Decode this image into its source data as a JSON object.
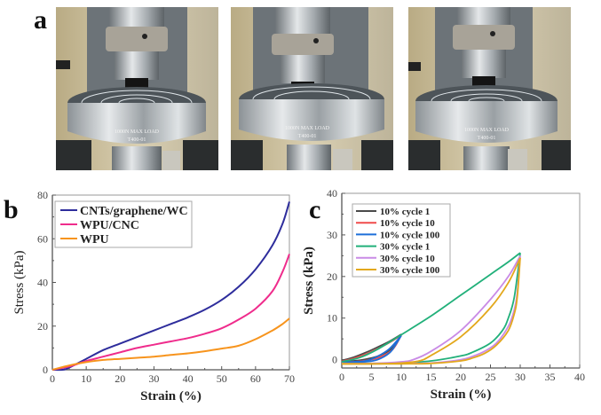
{
  "panels": {
    "a": {
      "letter": "a",
      "photos": [
        {
          "caption_engraving": "1000N MAX LOAD",
          "caption_code": "T400-01",
          "state": "uncompressed"
        },
        {
          "caption_engraving": "1000N MAX LOAD",
          "caption_code": "T400-01",
          "state": "compressed"
        },
        {
          "caption_engraving": "1000N MAX LOAD",
          "caption_code": "T400-01",
          "state": "released"
        }
      ]
    },
    "b": {
      "letter": "b"
    },
    "c": {
      "letter": "c"
    }
  },
  "chart_data": [
    {
      "id": "b",
      "type": "line",
      "title": "",
      "xlabel": "Strain (%)",
      "ylabel": "Stress (kPa)",
      "xlim": [
        0,
        70
      ],
      "ylim": [
        0,
        80
      ],
      "xticks": [
        0,
        10,
        20,
        30,
        40,
        50,
        60,
        70
      ],
      "yticks": [
        0,
        20,
        40,
        60,
        80
      ],
      "grid": false,
      "legend_position": "top-left",
      "series": [
        {
          "name": "CNTs/graphene/WC",
          "color": "#2e2d9c",
          "x": [
            0,
            3,
            5,
            10,
            15,
            20,
            25,
            30,
            35,
            40,
            45,
            50,
            55,
            60,
            65,
            68,
            70
          ],
          "y": [
            0,
            0,
            1,
            5,
            9,
            12,
            15,
            18,
            21,
            24,
            27.5,
            32,
            38,
            46,
            57,
            67,
            77
          ]
        },
        {
          "name": "WPU/CNC",
          "color": "#ef2c8c",
          "x": [
            0,
            5,
            10,
            15,
            20,
            25,
            30,
            35,
            40,
            45,
            50,
            55,
            60,
            65,
            68,
            70
          ],
          "y": [
            0,
            1.5,
            4,
            6,
            8,
            10,
            11.5,
            13,
            14.5,
            16.5,
            19,
            23,
            28,
            36,
            45,
            53
          ]
        },
        {
          "name": "WPU",
          "color": "#f7941d",
          "x": [
            0,
            5,
            10,
            15,
            20,
            25,
            30,
            35,
            40,
            45,
            50,
            55,
            60,
            65,
            68,
            70
          ],
          "y": [
            0,
            2,
            3.5,
            4.5,
            5,
            5.5,
            6,
            6.8,
            7.5,
            8.5,
            9.7,
            11,
            14,
            18,
            21,
            23.5
          ]
        }
      ]
    },
    {
      "id": "c",
      "type": "line",
      "title": "",
      "xlabel": "Strain (%)",
      "ylabel": "Stress (kPa)",
      "xlim": [
        0,
        40
      ],
      "ylim": [
        -2,
        40
      ],
      "xticks": [
        0,
        5,
        10,
        15,
        20,
        25,
        30,
        35,
        40
      ],
      "yticks": [
        0,
        10,
        20,
        30,
        40
      ],
      "grid": false,
      "legend_position": "top-left",
      "series": [
        {
          "name": "10% cycle 1",
          "color": "#4a4a4a",
          "loading": {
            "x": [
              0,
              2,
              4,
              6,
              8,
              10
            ],
            "y": [
              -0.2,
              0.6,
              1.7,
              3.0,
              4.4,
              6.1
            ]
          },
          "unloading": {
            "x": [
              10,
              9,
              8,
              6,
              4,
              2,
              0
            ],
            "y": [
              6.1,
              3.6,
              2.2,
              0.8,
              0.1,
              -0.3,
              -0.4
            ]
          }
        },
        {
          "name": "10% cycle 10",
          "color": "#f04b4b",
          "loading": {
            "x": [
              0,
              2,
              4,
              6,
              8,
              10
            ],
            "y": [
              -0.4,
              0.3,
              1.3,
              2.6,
              4.1,
              5.9
            ]
          },
          "unloading": {
            "x": [
              10,
              9,
              8,
              6,
              4,
              2,
              0
            ],
            "y": [
              5.9,
              3.3,
              1.8,
              0.4,
              -0.2,
              -0.5,
              -0.5
            ]
          }
        },
        {
          "name": "10% cycle 100",
          "color": "#1e6fd9",
          "loading": {
            "x": [
              0,
              2,
              4,
              6,
              8,
              10
            ],
            "y": [
              -0.6,
              -0.5,
              -0.3,
              0.8,
              2.6,
              5.8
            ]
          },
          "unloading": {
            "x": [
              10,
              9,
              8,
              6,
              4,
              2,
              0
            ],
            "y": [
              5.8,
              3.5,
              1.6,
              0.0,
              -0.5,
              -0.6,
              -0.6
            ]
          }
        },
        {
          "name": "30% cycle 1",
          "color": "#21b07a",
          "loading": {
            "x": [
              0,
              3,
              6,
              10,
              15,
              20,
              25,
              28,
              30
            ],
            "y": [
              -0.5,
              0.5,
              2.5,
              6.0,
              10.5,
              15.5,
              20.5,
              23.5,
              25.7
            ]
          },
          "unloading": {
            "x": [
              30,
              29,
              28,
              27,
              25,
              22,
              20,
              15,
              10,
              5,
              0
            ],
            "y": [
              25.7,
              15.0,
              10.0,
              7.0,
              4.0,
              1.8,
              0.9,
              -0.3,
              -0.8,
              -0.9,
              -0.9
            ]
          }
        },
        {
          "name": "30% cycle 10",
          "color": "#c98be6",
          "loading": {
            "x": [
              0,
              5,
              10,
              12,
              15,
              20,
              25,
              28,
              30
            ],
            "y": [
              -0.9,
              -0.9,
              -0.5,
              0.0,
              2.0,
              7.0,
              14.5,
              20.0,
              25.0
            ]
          },
          "unloading": {
            "x": [
              30,
              29.5,
              29,
              28,
              26,
              24,
              22,
              20,
              15,
              10,
              5,
              0
            ],
            "y": [
              25.0,
              16.0,
              12.0,
              8.0,
              4.0,
              2.0,
              0.8,
              0.0,
              -0.8,
              -0.9,
              -1.0,
              -1.0
            ]
          }
        },
        {
          "name": "30% cycle 100",
          "color": "#e3a81c",
          "loading": {
            "x": [
              0,
              5,
              10,
              13,
              15,
              20,
              25,
              28,
              30
            ],
            "y": [
              -1.0,
              -1.0,
              -0.8,
              -0.3,
              1.0,
              5.5,
              12.5,
              18.5,
              24.5
            ]
          },
          "unloading": {
            "x": [
              30,
              29.5,
              29,
              28,
              26,
              24,
              22,
              20,
              15,
              10,
              5,
              0
            ],
            "y": [
              24.5,
              15.0,
              11.0,
              7.0,
              3.5,
              1.5,
              0.4,
              -0.3,
              -0.9,
              -1.0,
              -1.0,
              -1.0
            ]
          }
        }
      ]
    }
  ]
}
